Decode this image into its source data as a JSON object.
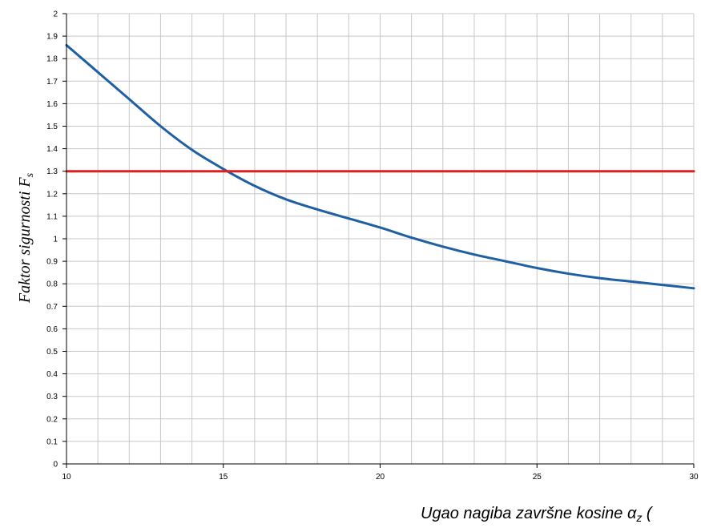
{
  "chart_data": {
    "type": "line",
    "title": "",
    "xlabel": "Ugao nagiba završne kosine αz (°)",
    "xlabel_main": "Ugao nagiba završne kosine α",
    "xlabel_sub": "z",
    "xlabel_tail": " (",
    "ylabel": "Faktor sigurnosti Fs",
    "ylabel_main": "Faktor sigurnosti F",
    "ylabel_sub": "s",
    "xlim": [
      10,
      30
    ],
    "ylim": [
      0,
      2
    ],
    "xticks": [
      "10",
      "15",
      "20",
      "25",
      "30"
    ],
    "yticks": [
      "0",
      "0.1",
      "0.2",
      "0.3",
      "0.4",
      "0.5",
      "0.6",
      "0.7",
      "0.8",
      "0.9",
      "1",
      "1.1",
      "1.2",
      "1.3",
      "1.4",
      "1.5",
      "1.6",
      "1.7",
      "1.8",
      "1.9",
      "2"
    ],
    "x_gridline_step": 1,
    "grid": true,
    "series": [
      {
        "color": "#1f5fa3",
        "x": [
          10,
          11,
          12,
          13,
          14,
          15,
          16,
          17,
          18,
          19,
          20,
          21,
          22,
          23,
          24,
          25,
          26,
          27,
          28,
          29,
          30
        ],
        "y": [
          1.86,
          1.74,
          1.62,
          1.5,
          1.395,
          1.31,
          1.235,
          1.175,
          1.13,
          1.09,
          1.05,
          1.005,
          0.965,
          0.93,
          0.9,
          0.87,
          0.845,
          0.825,
          0.81,
          0.795,
          0.78
        ]
      },
      {
        "color": "#e02020",
        "x": [
          10,
          30
        ],
        "y": [
          1.3,
          1.3
        ]
      }
    ]
  }
}
